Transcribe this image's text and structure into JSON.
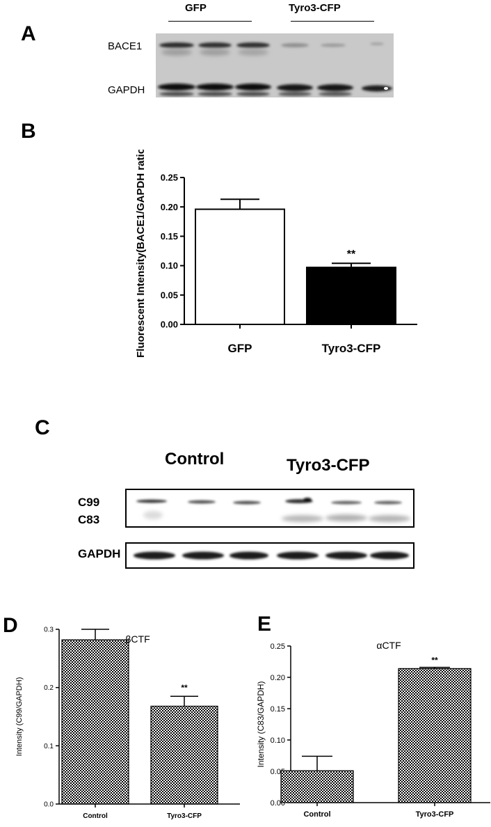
{
  "panels": {
    "a": {
      "letter": "A",
      "groups": [
        "GFP",
        "Tyro3-CFP"
      ],
      "rows": [
        "BACE1",
        "GAPDH"
      ]
    },
    "b": {
      "letter": "B"
    },
    "c": {
      "letter": "C",
      "groups": [
        "Control",
        "Tyro3-CFP"
      ],
      "rows": [
        "C99",
        "C83",
        "GAPDH"
      ]
    },
    "d": {
      "letter": "D"
    },
    "e": {
      "letter": "E"
    }
  },
  "colors": {
    "bar_white": "#ffffff",
    "bar_black": "#000000",
    "checker": "#000000"
  },
  "chart_data": [
    {
      "panel": "B",
      "type": "bar",
      "title": "",
      "categories": [
        "GFP",
        "Tyro3-CFP"
      ],
      "values": [
        0.196,
        0.097
      ],
      "errors": [
        0.017,
        0.007
      ],
      "significance": [
        "",
        "**"
      ],
      "fills": [
        "white",
        "black"
      ],
      "xlabel": "",
      "ylabel": "Fluorescent Intensity(BACE1/GAPDH ratio)",
      "ylim": [
        0,
        0.25
      ],
      "yticks": [
        "0.00",
        "0.05",
        "0.10",
        "0.15",
        "0.20",
        "0.25"
      ],
      "grid": false
    },
    {
      "panel": "D",
      "type": "bar",
      "title": "βCTF",
      "categories": [
        "Control",
        "Tyro3-CFP"
      ],
      "values": [
        0.282,
        0.168
      ],
      "errors": [
        0.018,
        0.017
      ],
      "significance": [
        "",
        "**"
      ],
      "fills": [
        "checker",
        "checker"
      ],
      "xlabel": "",
      "ylabel": "Intensity (C99/GAPDH)",
      "ylim": [
        0,
        0.3
      ],
      "yticks": [
        "0.0",
        "0.1",
        "0.2",
        "0.3"
      ],
      "grid": false
    },
    {
      "panel": "E",
      "type": "bar",
      "title": "αCTF",
      "categories": [
        "Control",
        "Tyro3-CFP"
      ],
      "values": [
        0.051,
        0.214
      ],
      "errors": [
        0.023,
        0.002
      ],
      "significance": [
        "",
        "**"
      ],
      "fills": [
        "checker",
        "checker"
      ],
      "xlabel": "",
      "ylabel": "Intensity (C83/GAPDH)",
      "ylim": [
        0,
        0.25
      ],
      "yticks": [
        "0.00",
        "0.05",
        "0.10",
        "0.15",
        "0.20",
        "0.25"
      ],
      "grid": false
    }
  ]
}
